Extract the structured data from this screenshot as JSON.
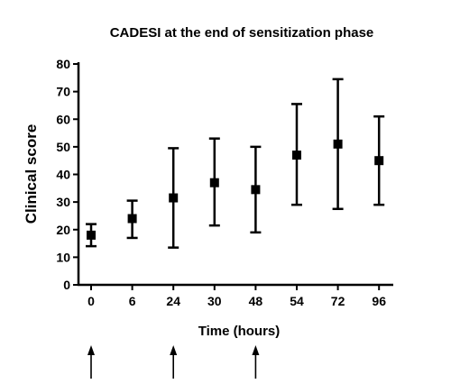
{
  "chart_data": {
    "type": "scatter",
    "title": "CADESI at the end of sensitization phase",
    "xlabel": "Time (hours)",
    "ylabel": "Clinical score",
    "categories": [
      "0",
      "6",
      "24",
      "30",
      "48",
      "54",
      "72",
      "96"
    ],
    "series": [
      {
        "values": [
          18,
          24,
          31.5,
          37,
          34.5,
          47,
          51,
          45
        ],
        "err_low": [
          14,
          17,
          13.5,
          21.5,
          19,
          29,
          27.5,
          29
        ],
        "err_high": [
          22,
          30.5,
          49.5,
          53,
          50,
          65.5,
          74.5,
          61
        ]
      }
    ],
    "yticks": [
      0,
      10,
      20,
      30,
      40,
      50,
      60,
      70,
      80
    ],
    "ylim": [
      0,
      80
    ],
    "grid": false,
    "arrows_at": [
      "0",
      "24",
      "48"
    ]
  }
}
